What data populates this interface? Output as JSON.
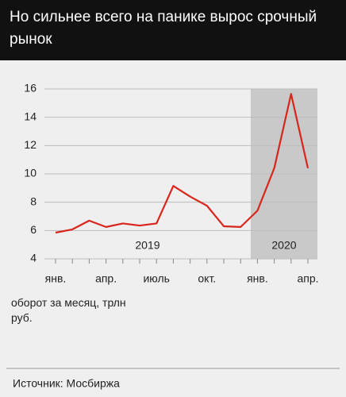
{
  "chart_data": {
    "type": "line",
    "title": "Но сильнее всего на панике вырос срочный рынок",
    "categories": [
      "янв.",
      null,
      null,
      "апр.",
      null,
      null,
      "июль",
      null,
      null,
      "окт.",
      null,
      null,
      "янв.",
      null,
      null,
      "апр."
    ],
    "groups": [
      {
        "label": "2019"
      },
      {
        "label": "2020",
        "shaded": true
      }
    ],
    "series": [
      {
        "color": "#d8261c",
        "values": [
          5.85,
          6.08,
          6.7,
          6.25,
          6.5,
          6.35,
          6.5,
          9.15,
          8.4,
          7.75,
          6.3,
          6.25,
          7.4,
          10.4,
          15.65,
          10.4
        ]
      }
    ],
    "ylim": [
      4,
      16
    ],
    "yticks": [
      4,
      6,
      8,
      10,
      12,
      14,
      16
    ],
    "grid": true,
    "y_label": "оборот за месяц, трлн руб.",
    "source": "Источник: Мосбиржа"
  }
}
